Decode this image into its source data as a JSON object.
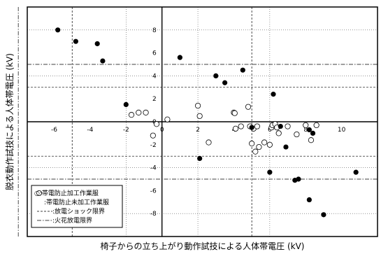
{
  "chart_data": {
    "type": "scatter",
    "title": "",
    "xlabel": "椅子からの立ち上がり動作試技による人体帯電圧 (kV)",
    "ylabel": "脱衣動作試技による人体帯電圧 (kV)",
    "xlim": [
      -7.5,
      12
    ],
    "ylim": [
      -10,
      10
    ],
    "x_tick_labels": [
      {
        "value": -6,
        "text": "-6"
      },
      {
        "value": -4,
        "text": "-4"
      },
      {
        "value": -2,
        "text": "-2"
      },
      {
        "value": 0,
        "text": "0"
      },
      {
        "value": 2,
        "text": "2"
      },
      {
        "value": 4,
        "text": "4"
      },
      {
        "value": 6,
        "text": "6"
      },
      {
        "value": 8,
        "text": "8"
      },
      {
        "value": 10,
        "text": "10"
      }
    ],
    "y_tick_labels": [
      {
        "value": 8,
        "text": "8"
      },
      {
        "value": 6,
        "text": "6"
      },
      {
        "value": 4,
        "text": "4"
      },
      {
        "value": 2,
        "text": "2"
      },
      {
        "value": 0,
        "text": "0"
      },
      {
        "value": -2,
        "text": "-2"
      },
      {
        "value": -4,
        "text": "-4"
      },
      {
        "value": -6,
        "text": "-6"
      },
      {
        "value": -8,
        "text": "-8"
      }
    ],
    "gridlines_x": [
      -2,
      2,
      6
    ],
    "gridlines_y": [
      -8,
      -4,
      4,
      8
    ],
    "reference_lines": {
      "shock_limit": {
        "x": [
          -5,
          5
        ],
        "y": [
          -3,
          3
        ]
      },
      "spark_limit": {
        "x": [
          -8
        ],
        "y": [
          -5,
          5
        ]
      }
    },
    "legend": {
      "position": "bottom-left",
      "entries": [
        {
          "marker": "open-circle",
          "label": "○:帯電防止加工作業服"
        },
        {
          "marker": "filled-circle",
          "label": ":帯電防止未加工作業服"
        },
        {
          "marker": "dashed-line",
          "label": ":放電ショック限界"
        },
        {
          "marker": "dashdot-line",
          "label": ":火花放電限界"
        }
      ]
    },
    "series": [
      {
        "name": "帯電防止加工作業服",
        "marker": "open-circle",
        "points": [
          [
            -1.7,
            0.6
          ],
          [
            -1.3,
            0.8
          ],
          [
            -0.9,
            0.8
          ],
          [
            -0.5,
            -1.2
          ],
          [
            -0.3,
            -0.2
          ],
          [
            0.3,
            0.2
          ],
          [
            2.0,
            1.4
          ],
          [
            2.1,
            0.5
          ],
          [
            2.6,
            -1.8
          ],
          [
            4.0,
            0.8
          ],
          [
            4.05,
            0.75
          ],
          [
            4.1,
            -0.6
          ],
          [
            4.4,
            -0.4
          ],
          [
            4.8,
            1.3
          ],
          [
            4.9,
            -0.4
          ],
          [
            5.0,
            -1.9
          ],
          [
            5.1,
            -0.6
          ],
          [
            5.2,
            -2.6
          ],
          [
            5.3,
            -0.4
          ],
          [
            5.4,
            -2.2
          ],
          [
            5.7,
            -1.8
          ],
          [
            6.0,
            -2.0
          ],
          [
            6.1,
            -0.5
          ],
          [
            6.15,
            -0.3
          ],
          [
            6.3,
            -0.2
          ],
          [
            6.4,
            -0.5
          ],
          [
            6.5,
            -1.0
          ],
          [
            7.0,
            -0.4
          ],
          [
            7.5,
            -1.1
          ],
          [
            8.0,
            -0.3
          ],
          [
            8.3,
            -1.6
          ],
          [
            8.6,
            -0.3
          ]
        ]
      },
      {
        "name": "帯電防止未加工作業服",
        "marker": "filled-circle",
        "points": [
          [
            -5.8,
            8.0
          ],
          [
            -4.8,
            7.0
          ],
          [
            -3.6,
            6.8
          ],
          [
            -3.3,
            5.3
          ],
          [
            -2.0,
            1.5
          ],
          [
            1.0,
            5.6
          ],
          [
            2.1,
            -3.2
          ],
          [
            3.0,
            4.0
          ],
          [
            3.5,
            3.4
          ],
          [
            4.5,
            4.5
          ],
          [
            5.0,
            -0.5
          ],
          [
            6.2,
            2.4
          ],
          [
            6.6,
            -0.4
          ],
          [
            6.9,
            -2.2
          ],
          [
            6.0,
            -4.4
          ],
          [
            7.4,
            -5.1
          ],
          [
            7.6,
            -5.0
          ],
          [
            8.2,
            -0.7
          ],
          [
            8.4,
            -1.0
          ],
          [
            8.2,
            -6.8
          ],
          [
            9.0,
            -8.1
          ],
          [
            10.8,
            -4.4
          ]
        ]
      }
    ]
  }
}
